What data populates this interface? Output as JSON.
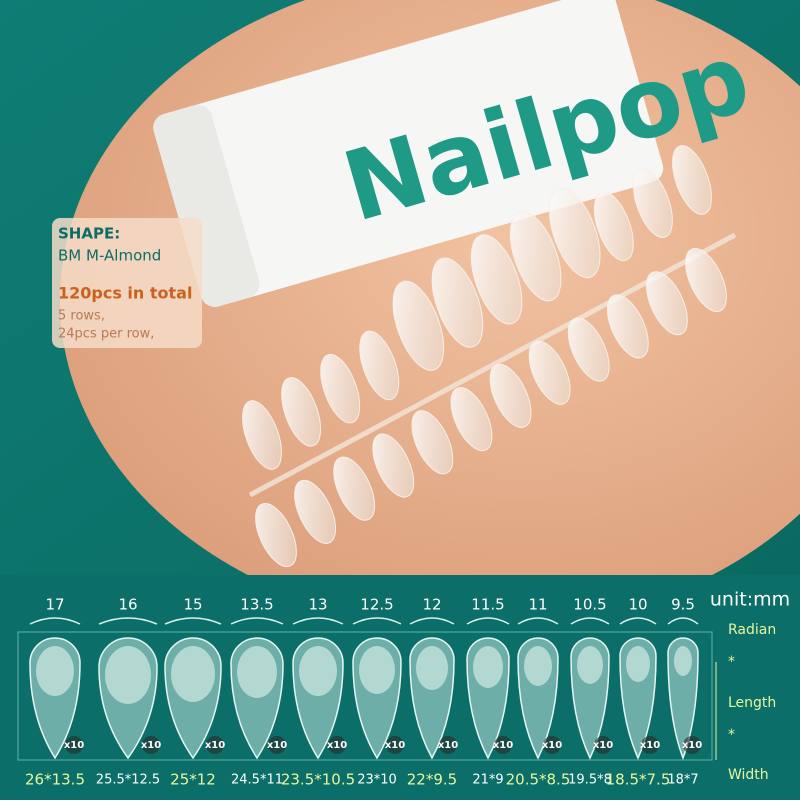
{
  "package": {
    "brand": "Nailpop"
  },
  "info": {
    "shape_label": "SHAPE:",
    "shape": "BM M-Almond",
    "total": "120pcs in total",
    "rows": "5 rows,",
    "per_row": "24pcs per row,"
  },
  "sizes": {
    "unit": "unit:mm",
    "legend": [
      "Radian",
      "*",
      "Length",
      "*",
      "Width"
    ],
    "radians": [
      "17",
      "16",
      "15",
      "13.5",
      "13",
      "12.5",
      "12",
      "11.5",
      "11",
      "10.5",
      "10",
      "9.5"
    ],
    "counts": [
      "x10",
      "x10",
      "x10",
      "x10",
      "x10",
      "x10",
      "x10",
      "x10",
      "x10",
      "x10",
      "x10",
      "x10"
    ],
    "dimensions": [
      "26*13.5",
      "25.5*12.5",
      "25*12",
      "24.5*11",
      "23.5*10.5",
      "23*10",
      "22*9.5",
      "21*9",
      "20.5*8.5",
      "19.5*8",
      "18.5*7.5",
      "18*7"
    ]
  }
}
